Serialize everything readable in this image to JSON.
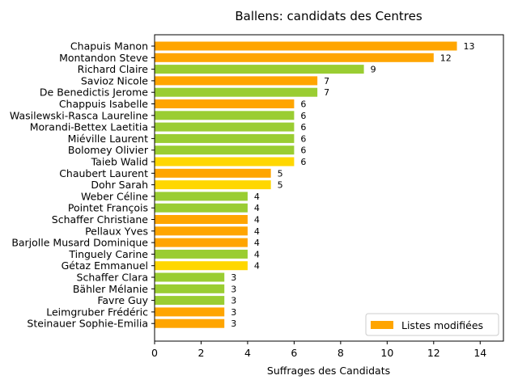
{
  "chart_data": {
    "type": "bar",
    "orientation": "horizontal",
    "title": "Ballens: candidats des Centres",
    "xlabel": "Suffrages des Candidats",
    "ylabel": "",
    "xlim": [
      0,
      15
    ],
    "xticks": [
      0,
      2,
      4,
      6,
      8,
      10,
      12,
      14
    ],
    "grid": false,
    "legend": {
      "position": "lower-right",
      "entries": [
        {
          "label": "Listes modifiées",
          "color": "#FFA500"
        }
      ]
    },
    "colors": {
      "orange": "#FFA500",
      "green": "#9ACD32",
      "gold": "#FFD700"
    },
    "bars": [
      {
        "name": "Chapuis Manon",
        "value": 13,
        "color": "orange",
        "label": "13"
      },
      {
        "name": "Montandon Steve",
        "value": 12,
        "color": "orange",
        "label": "12"
      },
      {
        "name": "Richard Claire",
        "value": 9,
        "color": "green",
        "label": "9"
      },
      {
        "name": "Savioz Nicole",
        "value": 7,
        "color": "orange",
        "label": "7"
      },
      {
        "name": "De Benedictis Jerome",
        "value": 7,
        "color": "green",
        "label": "7"
      },
      {
        "name": "Chappuis Isabelle",
        "value": 6,
        "color": "orange",
        "label": "6"
      },
      {
        "name": "Wasilewski-Rasca Laureline",
        "value": 6,
        "color": "green",
        "label": "6"
      },
      {
        "name": "Morandi-Bettex Laetitia",
        "value": 6,
        "color": "green",
        "label": "6"
      },
      {
        "name": "Miéville Laurent",
        "value": 6,
        "color": "green",
        "label": "6"
      },
      {
        "name": "Bolomey Olivier",
        "value": 6,
        "color": "green",
        "label": "6"
      },
      {
        "name": "Taieb Walid",
        "value": 6,
        "color": "gold",
        "label": "6"
      },
      {
        "name": "Chaubert Laurent",
        "value": 5,
        "color": "orange",
        "label": "5"
      },
      {
        "name": "Dohr Sarah",
        "value": 5,
        "color": "gold",
        "label": "5"
      },
      {
        "name": "Weber Céline",
        "value": 4,
        "color": "green",
        "label": "4"
      },
      {
        "name": "Pointet François",
        "value": 4,
        "color": "green",
        "label": "4"
      },
      {
        "name": "Schaffer Christiane",
        "value": 4,
        "color": "orange",
        "label": "4"
      },
      {
        "name": "Pellaux Yves",
        "value": 4,
        "color": "orange",
        "label": "4"
      },
      {
        "name": "Barjolle Musard Dominique",
        "value": 4,
        "color": "orange",
        "label": "4"
      },
      {
        "name": "Tinguely Carine",
        "value": 4,
        "color": "green",
        "label": "4"
      },
      {
        "name": "Gétaz Emmanuel",
        "value": 4,
        "color": "gold",
        "label": "4"
      },
      {
        "name": "Schaffer Clara",
        "value": 3,
        "color": "green",
        "label": "3"
      },
      {
        "name": "Bähler Mélanie",
        "value": 3,
        "color": "green",
        "label": "3"
      },
      {
        "name": "Favre Guy",
        "value": 3,
        "color": "green",
        "label": "3"
      },
      {
        "name": "Leimgruber Frédéric",
        "value": 3,
        "color": "orange",
        "label": "3"
      },
      {
        "name": "Steinauer Sophie-Emilia",
        "value": 3,
        "color": "orange",
        "label": "3"
      }
    ]
  }
}
